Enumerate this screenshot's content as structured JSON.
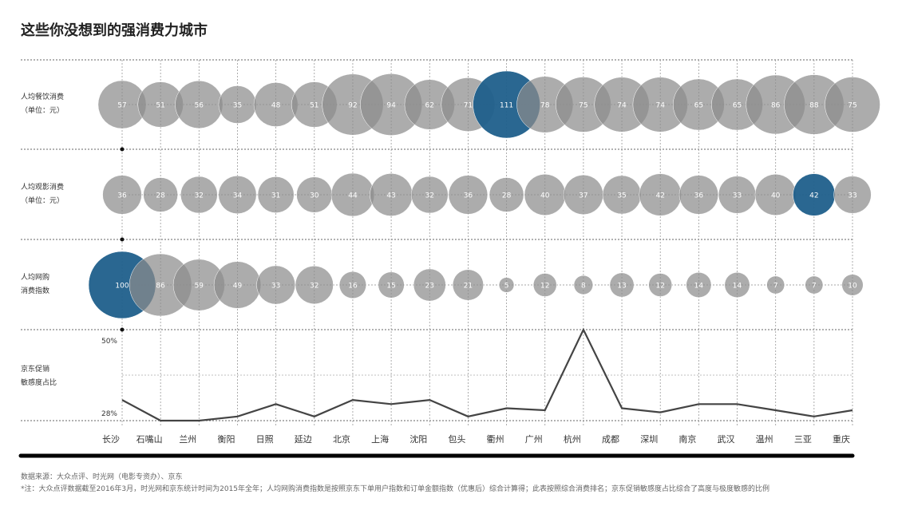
{
  "title": "这些你没想到的强消费力城市",
  "footer": {
    "source": "数据来源：大众点评、时光网（电影专资办）、京东",
    "note": "*注：大众点评数据截至2016年3月，时光网和京东统计时间为2015年全年；人均网购消费指数是按照京东下单用户指数和订单金额指数（优惠后）综合计算得；此表按照综合消费排名；京东促销敏感度占比综合了高度与极度敏感的比例"
  },
  "colors": {
    "bubble": "#8c8c8c",
    "highlight": "#1f5f8b",
    "line": "#444444"
  },
  "chart_data": {
    "type": "bubble-matrix",
    "categories": [
      "长沙",
      "石嘴山",
      "兰州",
      "衡阳",
      "日照",
      "延边",
      "北京",
      "上海",
      "沈阳",
      "包头",
      "衢州",
      "广州",
      "杭州",
      "成都",
      "深圳",
      "南京",
      "武汉",
      "温州",
      "三亚",
      "重庆"
    ],
    "rows": [
      {
        "label_lines": [
          "人均餐饮消费",
          "（单位：元）"
        ],
        "values": [
          57,
          51,
          56,
          35,
          48,
          51,
          92,
          94,
          62,
          71,
          111,
          78,
          75,
          74,
          74,
          65,
          65,
          86,
          88,
          75
        ],
        "highlight_index": 10
      },
      {
        "label_lines": [
          "人均观影消费",
          "（单位：元）"
        ],
        "values": [
          36,
          28,
          32,
          34,
          31,
          30,
          44,
          43,
          32,
          36,
          28,
          40,
          37,
          35,
          42,
          36,
          33,
          40,
          42,
          33
        ],
        "highlight_index": 18
      },
      {
        "label_lines": [
          "人均网购",
          "消费指数"
        ],
        "values": [
          100,
          86,
          59,
          49,
          33,
          32,
          16,
          15,
          23,
          21,
          5,
          12,
          8,
          13,
          12,
          14,
          14,
          7,
          7,
          10
        ],
        "highlight_index": 0
      }
    ],
    "line": {
      "label_lines": [
        "京东促销",
        "敏感度占比"
      ],
      "values": [
        33,
        28,
        28,
        29,
        32,
        29,
        33,
        32,
        33,
        29,
        31,
        30.5,
        50,
        31,
        30,
        32,
        32,
        30.5,
        29,
        30.5
      ],
      "ylim": [
        28,
        50
      ],
      "tick_labels": [
        "50%",
        "28%"
      ],
      "unit": "%"
    }
  }
}
